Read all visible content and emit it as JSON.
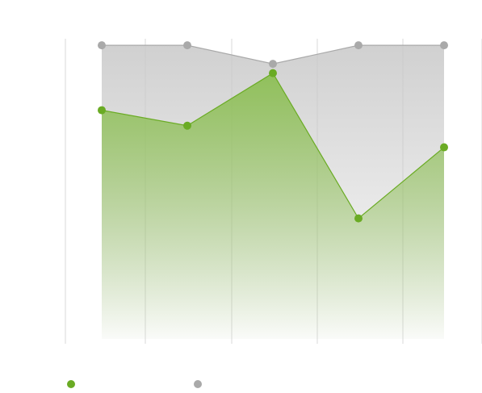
{
  "chart_data": {
    "type": "area",
    "title": "",
    "xlabel": "",
    "ylabel": "",
    "categories": [
      "",
      "",
      "",
      "",
      ""
    ],
    "ylim": [
      0,
      100
    ],
    "grid": true,
    "legend_placement": "bottom-left",
    "series": [
      {
        "name": "",
        "color": "#6aab24",
        "values": [
          74,
          69,
          86,
          39,
          62
        ]
      },
      {
        "name": "",
        "color": "#a9a9a9",
        "values": [
          95,
          95,
          89,
          95,
          95
        ]
      }
    ]
  }
}
